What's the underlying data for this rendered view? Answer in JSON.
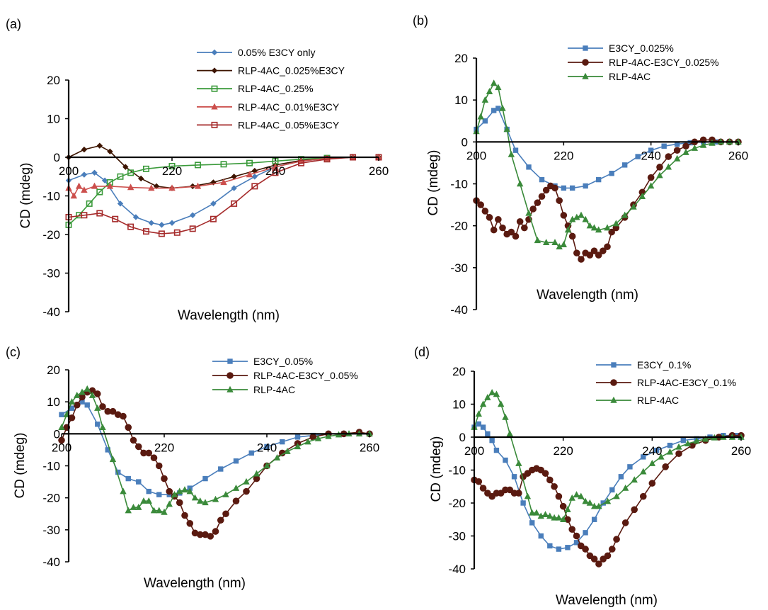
{
  "chart_data": [
    {
      "panel": "(a)",
      "type": "line",
      "xlabel": "Wavelength (nm)",
      "ylabel": "CD (mdeg)",
      "xlim": [
        200,
        260
      ],
      "ylim": [
        -40,
        20
      ],
      "xticks": [
        200,
        220,
        240,
        260
      ],
      "yticks": [
        20,
        10,
        0,
        -10,
        -20,
        -30,
        -40
      ],
      "legend_position": "top-right",
      "series": [
        {
          "name": "0.05% E3CY only",
          "color": "#4a7ebb",
          "marker": "diamond",
          "x": [
            200,
            203,
            205,
            207,
            210,
            213,
            216,
            218,
            220,
            224,
            228,
            232,
            236,
            240,
            245,
            250,
            255,
            260
          ],
          "y": [
            -6,
            -4.5,
            -4,
            -6,
            -12,
            -15.5,
            -17,
            -17.5,
            -17,
            -15,
            -12,
            -8,
            -5,
            -2.5,
            -1,
            -0.3,
            0,
            0
          ]
        },
        {
          "name": "RLP-4AC_0.025%E3CY",
          "color": "#3d1400",
          "marker": "diamond",
          "x": [
            200,
            203,
            206,
            208,
            211,
            214,
            217,
            220,
            224,
            228,
            232,
            236,
            240,
            245,
            250,
            255,
            260
          ],
          "y": [
            0,
            2,
            3,
            1.5,
            -2.5,
            -5.5,
            -7.5,
            -8,
            -7.5,
            -6.5,
            -5,
            -3.5,
            -2,
            -0.8,
            -0.3,
            0,
            0
          ]
        },
        {
          "name": "RLP-4AC_0.25%",
          "color": "#3a9a3a",
          "marker": "square-open",
          "x": [
            200,
            202,
            204,
            206,
            208,
            210,
            212,
            215,
            220,
            225,
            230,
            235,
            240,
            245,
            250,
            255,
            260
          ],
          "y": [
            -17.5,
            -15,
            -12,
            -9,
            -6.5,
            -5,
            -4,
            -3,
            -2.3,
            -2,
            -1.8,
            -1.5,
            -1,
            -0.5,
            -0.2,
            0,
            0
          ]
        },
        {
          "name": "RLP-4AC_0.01%E3CY",
          "color": "#cc4f4c",
          "marker": "triangle",
          "x": [
            200,
            201,
            202,
            203,
            205,
            208,
            212,
            216,
            220,
            225,
            230,
            235,
            240,
            245,
            250,
            255,
            260
          ],
          "y": [
            -8,
            -10,
            -7.5,
            -8.5,
            -7.5,
            -7.5,
            -7.8,
            -8,
            -8,
            -7.5,
            -6.5,
            -4.5,
            -2.5,
            -1,
            -0.3,
            0,
            0
          ]
        },
        {
          "name": "RLP-4AC_0.05%E3CY",
          "color": "#a52a2a",
          "marker": "square-open",
          "x": [
            200,
            203,
            206,
            209,
            212,
            215,
            218,
            221,
            224,
            228,
            232,
            236,
            240,
            245,
            250,
            255,
            260
          ],
          "y": [
            -15.5,
            -15,
            -14.5,
            -16,
            -18,
            -19.2,
            -19.8,
            -19.5,
            -18.5,
            -16,
            -12,
            -7.5,
            -4,
            -1.5,
            -0.5,
            0,
            0
          ]
        }
      ]
    },
    {
      "panel": "(b)",
      "type": "line",
      "xlabel": "Wavelength (nm)",
      "ylabel": "CD (mdeg)",
      "xlim": [
        200,
        260
      ],
      "ylim": [
        -40,
        20
      ],
      "xticks": [
        200,
        220,
        240,
        260
      ],
      "yticks": [
        20,
        10,
        0,
        -10,
        -20,
        -30,
        -40
      ],
      "legend_position": "top-right",
      "series": [
        {
          "name": "E3CY_0.025%",
          "color": "#4a7ebb",
          "marker": "square",
          "x": [
            200,
            202,
            204,
            205,
            207,
            209,
            212,
            215,
            218,
            220,
            222,
            225,
            228,
            231,
            234,
            237,
            240,
            243,
            246,
            249,
            252,
            255,
            258,
            260
          ],
          "y": [
            3,
            5,
            7.5,
            8,
            3,
            -2,
            -6,
            -9,
            -10.5,
            -11,
            -11,
            -10.5,
            -9,
            -7.5,
            -5.5,
            -3.5,
            -2,
            -1,
            -0.5,
            -0.2,
            0,
            0,
            0,
            0
          ]
        },
        {
          "name": "RLP-4AC-E3CY_0.025%",
          "color": "#5a1a10",
          "marker": "circle",
          "x": [
            200,
            201,
            202,
            203,
            204,
            205,
            206,
            207,
            208,
            209,
            210,
            211,
            212,
            213,
            214,
            215,
            216,
            217,
            218,
            219,
            220,
            221,
            222,
            223,
            224,
            225,
            226,
            227,
            228,
            229,
            230,
            231,
            232,
            234,
            236,
            238,
            240,
            242,
            244,
            246,
            248,
            250,
            252,
            254,
            256,
            258,
            260
          ],
          "y": [
            -14,
            -15,
            -16.5,
            -18,
            -21,
            -18.5,
            -20.5,
            -22,
            -21.5,
            -22.5,
            -19,
            -20.5,
            -18.5,
            -16,
            -14.5,
            -13,
            -11.5,
            -10.5,
            -11,
            -14,
            -17.5,
            -20,
            -22.5,
            -26.5,
            -28,
            -26.5,
            -27,
            -26,
            -27,
            -26,
            -25,
            -21.5,
            -20.5,
            -18,
            -15,
            -12,
            -8.5,
            -6,
            -3.5,
            -2,
            -1,
            0,
            0.5,
            0.5,
            0,
            0,
            0
          ]
        },
        {
          "name": "RLP-4AC",
          "color": "#3a8a3a",
          "marker": "triangle",
          "x": [
            200,
            201,
            202,
            203,
            204,
            205,
            206,
            207,
            208,
            210,
            212,
            214,
            216,
            218,
            219,
            220,
            221,
            222,
            223,
            224,
            225,
            226,
            227,
            228,
            230,
            232,
            234,
            236,
            238,
            240,
            242,
            244,
            246,
            248,
            250,
            252,
            254,
            256,
            258,
            260
          ],
          "y": [
            2.5,
            6,
            10,
            12,
            14,
            13,
            8,
            3,
            -3,
            -10,
            -17,
            -23.5,
            -24,
            -24,
            -25,
            -24.5,
            -21,
            -18.5,
            -18,
            -17.5,
            -18.5,
            -20,
            -20.5,
            -21,
            -20.5,
            -19.5,
            -17.5,
            -15.5,
            -13,
            -10.5,
            -8,
            -6,
            -4,
            -2.5,
            -1.5,
            -0.8,
            -0.3,
            0,
            0,
            0
          ]
        }
      ]
    },
    {
      "panel": "(c)",
      "type": "line",
      "xlabel": "Wavelength (nm)",
      "ylabel": "CD (mdeg)",
      "xlim": [
        200,
        260
      ],
      "ylim": [
        -40,
        20
      ],
      "xticks": [
        200,
        220,
        240,
        260
      ],
      "yticks": [
        20,
        10,
        0,
        -10,
        -20,
        -30,
        -40
      ],
      "legend_position": "top-right",
      "series": [
        {
          "name": "E3CY_0.05%",
          "color": "#4a7ebb",
          "marker": "square",
          "x": [
            200,
            202,
            204,
            205,
            207,
            209,
            211,
            213,
            215,
            217,
            219,
            221,
            223,
            225,
            228,
            231,
            234,
            237,
            240,
            243,
            246,
            249,
            252,
            255,
            258,
            260
          ],
          "y": [
            6,
            8,
            10,
            9,
            3,
            -5,
            -12,
            -14,
            -15,
            -18,
            -19,
            -19,
            -18.5,
            -17,
            -14,
            -11,
            -8.5,
            -6,
            -4,
            -2.5,
            -1,
            -0.5,
            0,
            0,
            0,
            0
          ]
        },
        {
          "name": "RLP-4AC-E3CY_0.05%",
          "color": "#5a1a10",
          "marker": "circle",
          "x": [
            200,
            201,
            202,
            203,
            204,
            205,
            206,
            207,
            208,
            209,
            210,
            211,
            212,
            213,
            214,
            215,
            216,
            217,
            218,
            219,
            220,
            221,
            222,
            223,
            224,
            225,
            226,
            227,
            228,
            229,
            230,
            231,
            232,
            234,
            236,
            238,
            240,
            243,
            246,
            249,
            252,
            255,
            258,
            260
          ],
          "y": [
            -2,
            2,
            5,
            9,
            11.5,
            13,
            13.5,
            12.5,
            8.5,
            7,
            7,
            6,
            5.5,
            2,
            -2,
            -4,
            -6,
            -6,
            -7.5,
            -10,
            -14,
            -18,
            -19.5,
            -21.5,
            -25.5,
            -28,
            -31,
            -31.5,
            -31.5,
            -32,
            -30.5,
            -27,
            -25,
            -21,
            -18,
            -14,
            -10,
            -6,
            -3,
            -1,
            0,
            0,
            0.5,
            0
          ]
        },
        {
          "name": "RLP-4AC",
          "color": "#3a8a3a",
          "marker": "triangle",
          "x": [
            200,
            201,
            202,
            203,
            204,
            205,
            206,
            207,
            208,
            210,
            212,
            213,
            214,
            215,
            216,
            217,
            218,
            219,
            220,
            221,
            222,
            223,
            224,
            225,
            226,
            227,
            228,
            230,
            232,
            234,
            236,
            238,
            240,
            242,
            244,
            246,
            248,
            250,
            252,
            254,
            256,
            258,
            260
          ],
          "y": [
            2,
            6,
            10,
            12,
            13,
            14,
            12,
            8,
            2,
            -8,
            -18,
            -24,
            -23,
            -23,
            -21,
            -21,
            -24,
            -24,
            -24.5,
            -22,
            -19,
            -18,
            -17.5,
            -18,
            -20,
            -21,
            -21.5,
            -20.5,
            -19,
            -17,
            -15,
            -12.5,
            -10,
            -7.5,
            -5.5,
            -4,
            -2.5,
            -1.5,
            -0.8,
            -0.3,
            0,
            0,
            0
          ]
        }
      ]
    },
    {
      "panel": "(d)",
      "type": "line",
      "xlabel": "Wavelength (nm)",
      "ylabel": "CD (mdeg)",
      "xlim": [
        200,
        260
      ],
      "ylim": [
        -40,
        20
      ],
      "xticks": [
        200,
        220,
        240,
        260
      ],
      "yticks": [
        20,
        10,
        0,
        -10,
        -20,
        -30,
        -40
      ],
      "legend_position": "top-right",
      "series": [
        {
          "name": "E3CY_0.1%",
          "color": "#4a7ebb",
          "marker": "square",
          "x": [
            200,
            201,
            202,
            203,
            204,
            205,
            207,
            209,
            211,
            213,
            215,
            217,
            219,
            221,
            223,
            225,
            227,
            229,
            231,
            233,
            235,
            238,
            241,
            244,
            247,
            250,
            253,
            256,
            259,
            260
          ],
          "y": [
            3,
            4,
            3,
            1,
            -1,
            -4,
            -7,
            -12,
            -20,
            -26,
            -30,
            -33,
            -34,
            -33.5,
            -32,
            -29,
            -25,
            -20,
            -16,
            -12,
            -9,
            -6,
            -4,
            -2.5,
            -1,
            -0.5,
            0,
            0.5,
            0.5,
            0
          ]
        },
        {
          "name": "RLP-4AC-E3CY_0.1%",
          "color": "#5a1a10",
          "marker": "circle",
          "x": [
            200,
            201,
            202,
            203,
            204,
            205,
            206,
            207,
            208,
            209,
            210,
            211,
            212,
            213,
            214,
            215,
            216,
            217,
            218,
            219,
            220,
            221,
            222,
            223,
            224,
            225,
            226,
            227,
            228,
            229,
            230,
            231,
            232,
            234,
            236,
            238,
            240,
            243,
            246,
            249,
            252,
            255,
            258,
            260
          ],
          "y": [
            -13,
            -13.5,
            -15.5,
            -17,
            -18,
            -17,
            -17,
            -16,
            -16,
            -17,
            -17,
            -12,
            -11,
            -10,
            -9.5,
            -10,
            -11,
            -13,
            -15,
            -18,
            -21,
            -25,
            -28,
            -30,
            -33,
            -34,
            -36,
            -37,
            -38.5,
            -37,
            -36,
            -34,
            -31,
            -26,
            -22,
            -18,
            -14,
            -9,
            -5,
            -2.5,
            -1,
            0,
            0.5,
            0.5
          ]
        },
        {
          "name": "RLP-4AC",
          "color": "#3a8a3a",
          "marker": "triangle",
          "x": [
            200,
            201,
            202,
            203,
            204,
            205,
            206,
            207,
            208,
            210,
            212,
            213,
            214,
            215,
            216,
            217,
            218,
            219,
            220,
            221,
            222,
            223,
            224,
            225,
            226,
            227,
            228,
            230,
            232,
            234,
            236,
            238,
            240,
            242,
            244,
            246,
            248,
            250,
            252,
            254,
            256,
            258,
            260
          ],
          "y": [
            3,
            7,
            10,
            12,
            13.5,
            13,
            10,
            6,
            1,
            -8,
            -18,
            -23,
            -23,
            -24,
            -23.5,
            -24,
            -24.5,
            -24.5,
            -25,
            -22,
            -18.5,
            -17.5,
            -18,
            -19.5,
            -20,
            -21,
            -21,
            -19.5,
            -18,
            -15.5,
            -13,
            -10.5,
            -8,
            -6,
            -4.5,
            -3,
            -2,
            -1.2,
            -0.6,
            -0.2,
            0,
            0,
            0
          ]
        }
      ]
    }
  ]
}
